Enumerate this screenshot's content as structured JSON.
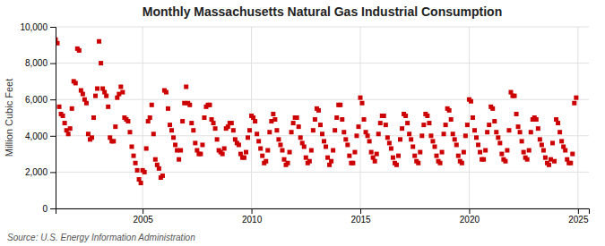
{
  "chart_data": {
    "type": "scatter",
    "title": "Monthly Massachusetts Natural Gas Industrial Consumption",
    "y_label": "Million Cubic Feet",
    "annotation": "Source: U.S. Energy Information Administration",
    "color": "#cc0000",
    "marker": "square",
    "grid": true,
    "xlim": [
      2001.0,
      2025.5
    ],
    "xticks": [
      2005,
      2010,
      2015,
      2020,
      2025
    ],
    "ylim": [
      0,
      10000
    ],
    "yticks": [
      0,
      {
        "value": 2000,
        "label": "2,000"
      },
      {
        "value": 4000,
        "label": "4,000"
      },
      {
        "value": 6000,
        "label": "6,000"
      },
      {
        "value": 8000,
        "label": "8,000"
      },
      {
        "value": 10000,
        "label": "10,000"
      }
    ],
    "x": [
      2001.0,
      2001.083,
      2001.167,
      2001.25,
      2001.333,
      2001.417,
      2001.5,
      2001.583,
      2001.667,
      2001.75,
      2001.833,
      2001.917,
      2002.0,
      2002.083,
      2002.167,
      2002.25,
      2002.333,
      2002.417,
      2002.5,
      2002.583,
      2002.667,
      2002.75,
      2002.833,
      2002.917,
      2003.0,
      2003.083,
      2003.167,
      2003.25,
      2003.333,
      2003.417,
      2003.5,
      2003.583,
      2003.667,
      2003.75,
      2003.833,
      2003.917,
      2004.0,
      2004.083,
      2004.167,
      2004.25,
      2004.333,
      2004.417,
      2004.5,
      2004.583,
      2004.667,
      2004.75,
      2004.833,
      2004.917,
      2005.0,
      2005.083,
      2005.167,
      2005.25,
      2005.333,
      2005.417,
      2005.5,
      2005.583,
      2005.667,
      2005.75,
      2005.833,
      2005.917,
      2006.0,
      2006.083,
      2006.167,
      2006.25,
      2006.333,
      2006.417,
      2006.5,
      2006.583,
      2006.667,
      2006.75,
      2006.833,
      2006.917,
      2007.0,
      2007.083,
      2007.167,
      2007.25,
      2007.333,
      2007.417,
      2007.5,
      2007.583,
      2007.667,
      2007.75,
      2007.833,
      2007.917,
      2008.0,
      2008.083,
      2008.167,
      2008.25,
      2008.333,
      2008.417,
      2008.5,
      2008.583,
      2008.667,
      2008.75,
      2008.833,
      2008.917,
      2009.0,
      2009.083,
      2009.167,
      2009.25,
      2009.333,
      2009.417,
      2009.5,
      2009.583,
      2009.667,
      2009.75,
      2009.833,
      2009.917,
      2010.0,
      2010.083,
      2010.167,
      2010.25,
      2010.333,
      2010.417,
      2010.5,
      2010.583,
      2010.667,
      2010.75,
      2010.833,
      2010.917,
      2011.0,
      2011.083,
      2011.167,
      2011.25,
      2011.333,
      2011.417,
      2011.5,
      2011.583,
      2011.667,
      2011.75,
      2011.833,
      2011.917,
      2012.0,
      2012.083,
      2012.167,
      2012.25,
      2012.333,
      2012.417,
      2012.5,
      2012.583,
      2012.667,
      2012.75,
      2012.833,
      2012.917,
      2013.0,
      2013.083,
      2013.167,
      2013.25,
      2013.333,
      2013.417,
      2013.5,
      2013.583,
      2013.667,
      2013.75,
      2013.833,
      2013.917,
      2014.0,
      2014.083,
      2014.167,
      2014.25,
      2014.333,
      2014.417,
      2014.5,
      2014.583,
      2014.667,
      2014.75,
      2014.833,
      2014.917,
      2015.0,
      2015.083,
      2015.167,
      2015.25,
      2015.333,
      2015.417,
      2015.5,
      2015.583,
      2015.667,
      2015.75,
      2015.833,
      2015.917,
      2016.0,
      2016.083,
      2016.167,
      2016.25,
      2016.333,
      2016.417,
      2016.5,
      2016.583,
      2016.667,
      2016.75,
      2016.833,
      2016.917,
      2017.0,
      2017.083,
      2017.167,
      2017.25,
      2017.333,
      2017.417,
      2017.5,
      2017.583,
      2017.667,
      2017.75,
      2017.833,
      2017.917,
      2018.0,
      2018.083,
      2018.167,
      2018.25,
      2018.333,
      2018.417,
      2018.5,
      2018.583,
      2018.667,
      2018.75,
      2018.833,
      2018.917,
      2019.0,
      2019.083,
      2019.167,
      2019.25,
      2019.333,
      2019.417,
      2019.5,
      2019.583,
      2019.667,
      2019.75,
      2019.833,
      2019.917,
      2020.0,
      2020.083,
      2020.167,
      2020.25,
      2020.333,
      2020.417,
      2020.5,
      2020.583,
      2020.667,
      2020.75,
      2020.833,
      2020.917,
      2021.0,
      2021.083,
      2021.167,
      2021.25,
      2021.333,
      2021.417,
      2021.5,
      2021.583,
      2021.667,
      2021.75,
      2021.833,
      2021.917,
      2022.0,
      2022.083,
      2022.167,
      2022.25,
      2022.333,
      2022.417,
      2022.5,
      2022.583,
      2022.667,
      2022.75,
      2022.833,
      2022.917,
      2023.0,
      2023.083,
      2023.167,
      2023.25,
      2023.333,
      2023.417,
      2023.5,
      2023.583,
      2023.667,
      2023.75,
      2023.833,
      2023.917,
      2024.0,
      2024.083,
      2024.167,
      2024.25,
      2024.333,
      2024.417,
      2024.5,
      2024.583,
      2024.667,
      2024.75,
      2024.833,
      2024.917
    ],
    "values": [
      9300,
      9100,
      5600,
      5200,
      5100,
      4700,
      4300,
      4100,
      4400,
      5500,
      7000,
      6900,
      8800,
      8700,
      6500,
      6300,
      6000,
      5800,
      4100,
      3800,
      3900,
      5000,
      6200,
      6600,
      9200,
      8000,
      6600,
      6400,
      6200,
      5600,
      3900,
      3700,
      3700,
      4500,
      6100,
      6300,
      6700,
      6400,
      5000,
      4900,
      4800,
      4200,
      3400,
      2900,
      2500,
      2100,
      1600,
      1400,
      2100,
      2000,
      3300,
      4800,
      5000,
      5700,
      4100,
      2700,
      2400,
      2200,
      1700,
      1800,
      6500,
      6400,
      5500,
      4600,
      4300,
      3900,
      3500,
      3200,
      2700,
      3200,
      4800,
      5800,
      6700,
      5800,
      5700,
      4700,
      4300,
      3600,
      3200,
      3000,
      3000,
      3500,
      5000,
      5600,
      5700,
      5700,
      4900,
      4700,
      4400,
      3800,
      3200,
      3100,
      3000,
      3300,
      4400,
      4500,
      4700,
      4700,
      4300,
      3800,
      3600,
      3500,
      3000,
      2800,
      2800,
      3100,
      3900,
      4300,
      5100,
      5000,
      4800,
      4100,
      3700,
      3300,
      2900,
      2500,
      2600,
      3200,
      4200,
      4800,
      5200,
      4900,
      4300,
      3800,
      3500,
      3200,
      2700,
      2400,
      2500,
      3100,
      4200,
      4700,
      5000,
      5000,
      4500,
      3900,
      3600,
      3400,
      2800,
      2500,
      2600,
      3200,
      4300,
      4900,
      5500,
      5400,
      4600,
      4100,
      3700,
      3400,
      2800,
      2400,
      2600,
      3200,
      4300,
      5000,
      5700,
      5700,
      4900,
      4200,
      3800,
      3500,
      2900,
      2500,
      2500,
      3100,
      4000,
      4500,
      6100,
      5800,
      4900,
      4200,
      4000,
      3700,
      3100,
      2800,
      2600,
      3000,
      4100,
      4700,
      5100,
      5100,
      4600,
      3900,
      3600,
      3300,
      2800,
      2500,
      2400,
      2900,
      3800,
      4400,
      5200,
      5100,
      4700,
      4100,
      3800,
      3400,
      2900,
      2600,
      2500,
      3100,
      4000,
      4600,
      5200,
      5100,
      4700,
      4000,
      3700,
      3400,
      2900,
      2600,
      2500,
      3100,
      4100,
      4600,
      5500,
      5400,
      4900,
      4100,
      3800,
      3500,
      2900,
      2600,
      2500,
      3100,
      4000,
      4600,
      6000,
      5900,
      5000,
      4300,
      3900,
      3500,
      3100,
      2700,
      2700,
      3200,
      4200,
      4600,
      5600,
      5500,
      4800,
      4200,
      3900,
      3600,
      3000,
      2700,
      2600,
      3200,
      4300,
      6400,
      6200,
      6200,
      5200,
      4500,
      4200,
      3700,
      3100,
      2800,
      2700,
      3200,
      4200,
      4900,
      5000,
      4900,
      4400,
      3800,
      3500,
      3200,
      2800,
      2500,
      2400,
      2700,
      3600,
      2600,
      4900,
      4700,
      4200,
      3700,
      3400,
      3200,
      2700,
      2500,
      2500,
      3000,
      5800,
      6100
    ]
  }
}
